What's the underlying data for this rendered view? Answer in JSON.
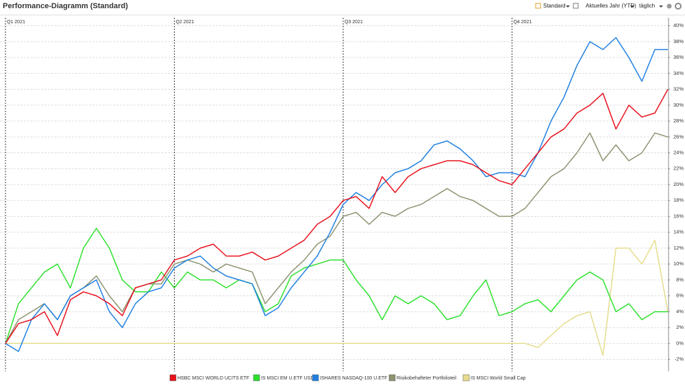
{
  "header": {
    "title": "Performance-Diagramm (Standard)",
    "controls": [
      "Standard",
      "Aktuelles Jahr (YTD)",
      "täglich"
    ]
  },
  "chart_data": {
    "type": "line",
    "categories": [
      "Q1 2021",
      null,
      null,
      null,
      null,
      null,
      null,
      null,
      null,
      null,
      null,
      null,
      null,
      "Q2 2021",
      null,
      null,
      null,
      null,
      null,
      null,
      null,
      null,
      null,
      null,
      null,
      null,
      "Q3 2021",
      null,
      null,
      null,
      null,
      null,
      null,
      null,
      null,
      null,
      null,
      null,
      null,
      "Q4 2021",
      null,
      null,
      null,
      null,
      null,
      null,
      null,
      null,
      null,
      null,
      null,
      null
    ],
    "series": [
      {
        "name": "HSBC MSCI WORLD UCITS ETF",
        "color": "#e8111d",
        "values": [
          0,
          2.5,
          3,
          4,
          1,
          5.5,
          6.5,
          6,
          5,
          3.5,
          7,
          7.5,
          8,
          10.5,
          11,
          12,
          12.5,
          11,
          11,
          11.5,
          10.5,
          11,
          12,
          13,
          15,
          16,
          18,
          18.5,
          17,
          21,
          19,
          21,
          22,
          22.5,
          23,
          23,
          22.5,
          21.5,
          20.5,
          20,
          22,
          24,
          26,
          27,
          29,
          30,
          31.5,
          27,
          30,
          28.5,
          29,
          32
        ]
      },
      {
        "name": "IS MSCI EM U.ETF USD D",
        "color": "#2de02d",
        "values": [
          0,
          5,
          7,
          9,
          10,
          7,
          12,
          14.5,
          12,
          8,
          6.5,
          6.5,
          9,
          7,
          9,
          8,
          8,
          7,
          8,
          7.5,
          4,
          5,
          8.5,
          9.5,
          10,
          10.5,
          10.5,
          8,
          6,
          3,
          6,
          5,
          6,
          5,
          3,
          3.5,
          6,
          8,
          3.5,
          4,
          5,
          5.5,
          4,
          6,
          8,
          9,
          8,
          4,
          5,
          3,
          4,
          4
        ]
      },
      {
        "name": "ISHARES NASDAQ-100 U.ETF",
        "color": "#1f7fe0",
        "values": [
          0,
          -1,
          3,
          5,
          3,
          6,
          7,
          8,
          4,
          2,
          5,
          6.5,
          7,
          9.5,
          10.5,
          11,
          9.5,
          8.5,
          8,
          7.5,
          3.5,
          4.5,
          7,
          9,
          11,
          14,
          17.5,
          19,
          18,
          20,
          21.5,
          22,
          23,
          25,
          25.5,
          24.5,
          23,
          21,
          21.5,
          21.5,
          21,
          24,
          28,
          31,
          35,
          38,
          37,
          38.5,
          36,
          33,
          37,
          37
        ]
      },
      {
        "name": "Risikobehafteter Portfolioteil",
        "color": "#8c9470",
        "values": [
          0,
          3,
          4,
          5,
          3,
          6,
          7,
          8.5,
          6,
          4,
          7,
          7.5,
          7.5,
          10,
          10.5,
          10,
          9,
          10,
          9.5,
          9,
          5,
          7,
          9,
          10.5,
          12.5,
          13.5,
          16,
          16.5,
          15,
          16.5,
          16,
          17,
          17.5,
          18.5,
          19.5,
          18.5,
          18,
          17,
          16,
          16,
          17,
          19,
          21,
          22,
          24,
          26.5,
          23,
          25,
          23,
          24,
          26.5,
          26
        ]
      },
      {
        "name": "IS MSCI World Small Cap",
        "color": "#e6dc8c",
        "values": [
          0,
          0,
          0,
          0,
          0,
          0,
          0,
          0,
          0,
          0,
          0,
          0,
          0,
          0,
          0,
          0,
          0,
          0,
          0,
          0,
          0,
          0,
          0,
          0,
          0,
          0,
          0,
          0,
          0,
          0,
          0,
          0,
          0,
          0,
          0,
          0,
          0,
          0,
          0,
          0,
          0,
          -0.5,
          1,
          2.5,
          3.5,
          4,
          -1.5,
          12,
          12,
          10,
          13,
          4
        ]
      }
    ],
    "ylim": [
      -3.5,
      41
    ],
    "yticks": [
      {
        "value": -2,
        "label": "-2%"
      },
      {
        "value": 0,
        "label": "0%"
      },
      {
        "value": 2,
        "label": "2%"
      },
      {
        "value": 4,
        "label": "4%"
      },
      {
        "value": 6,
        "label": "6%"
      },
      {
        "value": 8,
        "label": "8%"
      },
      {
        "value": 10,
        "label": "10%"
      },
      {
        "value": 12,
        "label": "12%"
      },
      {
        "value": 14,
        "label": "14%"
      },
      {
        "value": 16,
        "label": "16%"
      },
      {
        "value": 18,
        "label": "18%"
      },
      {
        "value": 20,
        "label": "20%"
      },
      {
        "value": 22,
        "label": "22%"
      },
      {
        "value": 24,
        "label": "24%"
      },
      {
        "value": 26,
        "label": "26%"
      },
      {
        "value": 28,
        "label": "28%"
      },
      {
        "value": 30,
        "label": "30%"
      },
      {
        "value": 32,
        "label": "32%"
      },
      {
        "value": 34,
        "label": "34%"
      },
      {
        "value": 36,
        "label": "36%"
      },
      {
        "value": 38,
        "label": "38%"
      },
      {
        "value": 40,
        "label": "40%"
      }
    ],
    "grid": true
  }
}
